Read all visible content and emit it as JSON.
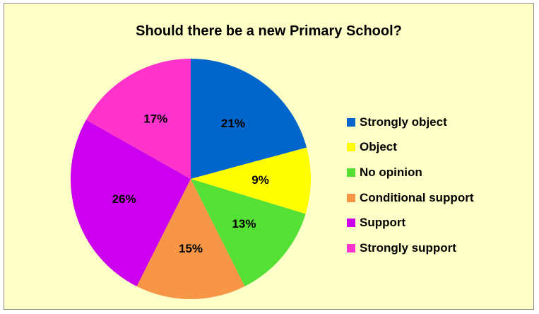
{
  "chart_data": {
    "type": "pie",
    "title": "Should there be a new Primary School?",
    "legend_position": "right",
    "slices": [
      {
        "label": "Strongly object",
        "value": 21,
        "display": "21%",
        "color": "#0066cc"
      },
      {
        "label": "Object",
        "value": 9,
        "display": "9%",
        "color": "#ffff00"
      },
      {
        "label": "No opinion",
        "value": 13,
        "display": "13%",
        "color": "#55e036"
      },
      {
        "label": "Conditional support",
        "value": 15,
        "display": "15%",
        "color": "#f79646"
      },
      {
        "label": "Support",
        "value": 26,
        "display": "26%",
        "color": "#cc00ee"
      },
      {
        "label": "Strongly support",
        "value": 17,
        "display": "17%",
        "color": "#ff33cc"
      }
    ]
  },
  "colors": {
    "chart_background": "#ffffc8",
    "border": "#8c8c8c"
  }
}
